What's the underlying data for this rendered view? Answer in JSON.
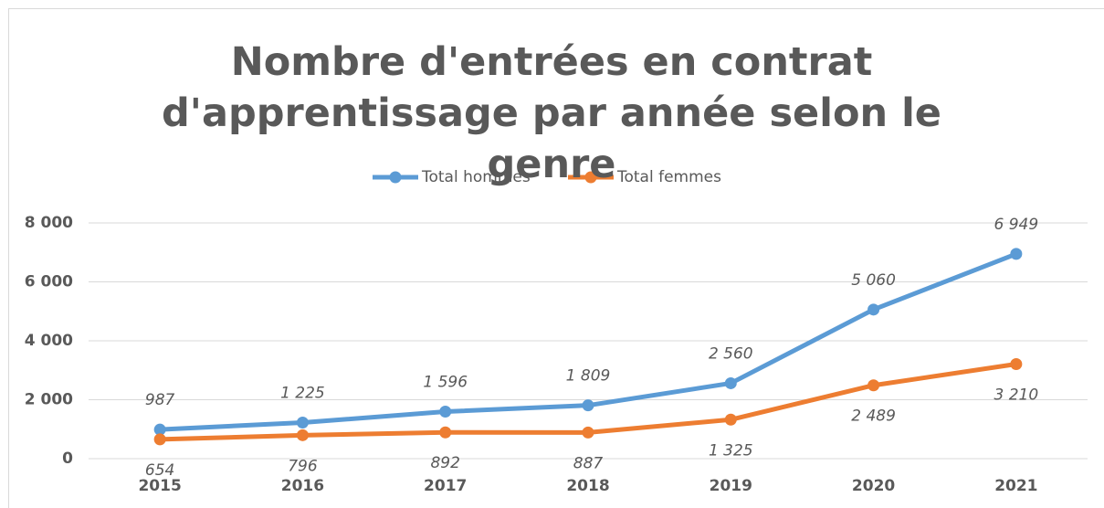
{
  "chart_data": {
    "type": "line",
    "title": "Nombre d'entrées en contrat d'apprentissage par année selon le genre",
    "categories": [
      "2015",
      "2016",
      "2017",
      "2018",
      "2019",
      "2020",
      "2021"
    ],
    "series": [
      {
        "name": "Total hommes",
        "color": "#5b9bd5",
        "values": [
          987,
          1225,
          1596,
          1809,
          2560,
          5060,
          6949
        ],
        "value_labels": [
          "987",
          "1 225",
          "1 596",
          "1 809",
          "2 560",
          "5 060",
          "6 949"
        ]
      },
      {
        "name": "Total femmes",
        "color": "#ed7d31",
        "values": [
          654,
          796,
          892,
          887,
          1325,
          2489,
          3210
        ],
        "value_labels": [
          "654",
          "796",
          "892",
          "887",
          "1 325",
          "2 489",
          "3 210"
        ]
      }
    ],
    "ylim": [
      0,
      8000
    ],
    "yticks": [
      0,
      {
        "value": 2000,
        "label": "2 000"
      },
      {
        "value": 4000,
        "label": "4 000"
      },
      {
        "value": 6000,
        "label": "6 000"
      },
      {
        "value": 8000,
        "label": "8 000"
      }
    ],
    "grid": true,
    "legend": "top"
  }
}
